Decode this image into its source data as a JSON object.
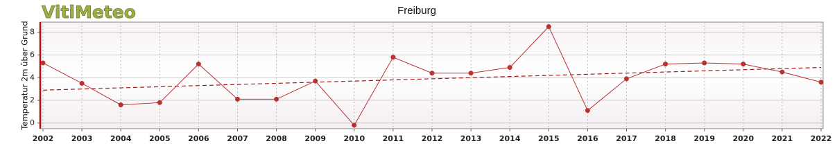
{
  "brand": "VitiMeteo",
  "chart_data": {
    "type": "line",
    "title": "Freiburg",
    "y_label": "Temperatur 2m über Grund",
    "categories": [
      "2002",
      "2003",
      "2004",
      "2005",
      "2006",
      "2007",
      "2008",
      "2009",
      "2010",
      "2011",
      "2012",
      "2013",
      "2014",
      "2015",
      "2016",
      "2017",
      "2018",
      "2019",
      "2020",
      "2021",
      "2022"
    ],
    "values": [
      5.3,
      3.5,
      1.6,
      1.8,
      5.2,
      2.1,
      2.1,
      3.7,
      -0.2,
      5.8,
      4.4,
      4.4,
      4.9,
      8.5,
      1.1,
      3.9,
      5.2,
      5.3,
      5.2,
      4.5,
      3.6
    ],
    "color": "#b83232",
    "trendline": {
      "from": 2.9,
      "to": 4.9,
      "color": "#a01818"
    },
    "ylim": [
      -0.5,
      8.9
    ],
    "yticks": [
      0,
      2,
      4,
      6,
      8
    ],
    "grid": true
  }
}
